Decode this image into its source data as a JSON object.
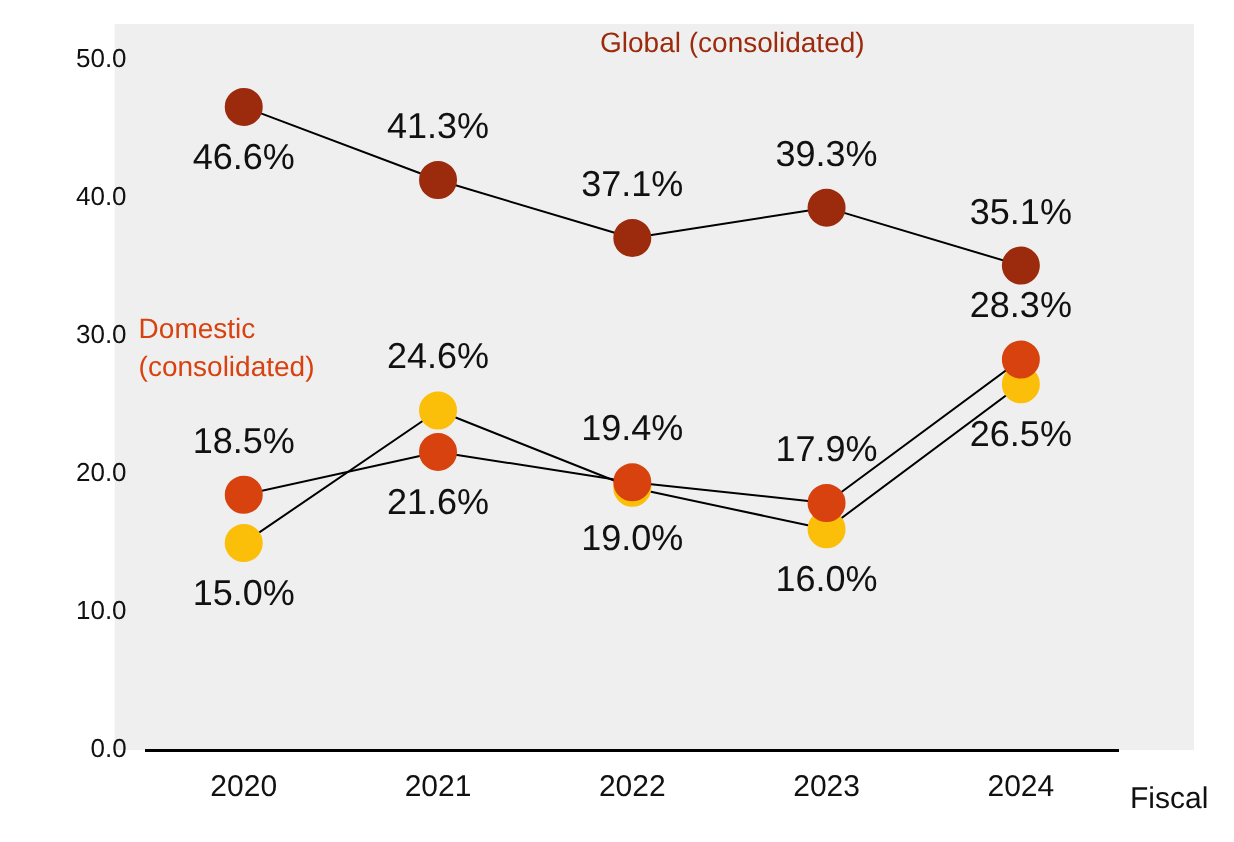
{
  "chart_data": {
    "type": "line",
    "xlabel": "Fiscal",
    "categories": [
      "2020",
      "2021",
      "2022",
      "2023",
      "2024"
    ],
    "series": [
      {
        "name": "Global (consolidated)",
        "color": "#9c2b0e",
        "values": [
          46.6,
          41.3,
          37.1,
          39.3,
          35.1
        ],
        "value_labels": [
          "46.6%",
          "41.3%",
          "37.1%",
          "39.3%",
          "35.1%"
        ]
      },
      {
        "name": "Domestic (consolidated)",
        "color": "#d8420f",
        "values": [
          18.5,
          21.6,
          19.4,
          17.9,
          28.3
        ],
        "value_labels": [
          "18.5%",
          "21.6%",
          "19.4%",
          "17.9%",
          "28.3%"
        ]
      },
      {
        "color": "#fbbf0a",
        "values": [
          15.0,
          24.6,
          19.0,
          16.0,
          26.5
        ],
        "value_labels": [
          "15.0%",
          "24.6%",
          "19.0%",
          "16.0%",
          "26.5%"
        ]
      }
    ],
    "ylim": [
      0,
      50
    ],
    "yticks": [
      {
        "value": 0,
        "label": "0.0"
      },
      {
        "value": 10,
        "label": "10.0"
      },
      {
        "value": 20,
        "label": "20.0"
      },
      {
        "value": 30,
        "label": "30.0"
      },
      {
        "value": 40,
        "label": "40.0"
      },
      {
        "value": 50,
        "label": "50.0"
      }
    ],
    "grid": false,
    "legend": false,
    "marker": "circle",
    "line_style": "solid"
  }
}
